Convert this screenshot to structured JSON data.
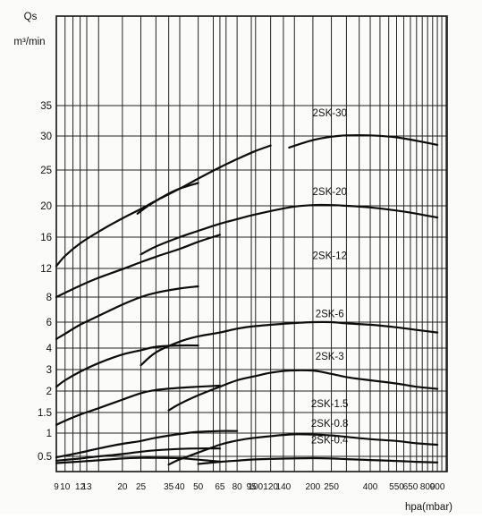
{
  "chart_data": {
    "type": "line",
    "ylabel": "Qs",
    "ylabel_unit": "m³/min",
    "xlabel": "hpa(mbar)",
    "x_scale": "log",
    "y_scale": "nonlinear",
    "grid": true,
    "xlim": [
      9,
      1013
    ],
    "y_ticks": [
      {
        "label": "0.5",
        "value": 0.5
      },
      {
        "label": "1",
        "value": 1
      },
      {
        "label": "1.5",
        "value": 1.5
      },
      {
        "label": "2",
        "value": 2
      },
      {
        "label": "3",
        "value": 3
      },
      {
        "label": "4",
        "value": 4
      },
      {
        "label": "6",
        "value": 6
      },
      {
        "label": "8",
        "value": 8
      },
      {
        "label": "12",
        "value": 12
      },
      {
        "label": "16",
        "value": 16
      },
      {
        "label": "20",
        "value": 20
      },
      {
        "label": "25",
        "value": 25
      },
      {
        "label": "30",
        "value": 30
      },
      {
        "label": "35",
        "value": 35
      }
    ],
    "x_ticks": [
      {
        "label": "9",
        "value": 9
      },
      {
        "label": "10",
        "value": 10
      },
      {
        "label": "12",
        "value": 12
      },
      {
        "label": "13",
        "value": 13
      },
      {
        "label": "20",
        "value": 20
      },
      {
        "label": "25",
        "value": 25
      },
      {
        "label": "35",
        "value": 35
      },
      {
        "label": "40",
        "value": 40
      },
      {
        "label": "50",
        "value": 50
      },
      {
        "label": "65",
        "value": 65
      },
      {
        "label": "80",
        "value": 80
      },
      {
        "label": "95",
        "value": 95
      },
      {
        "label": "100",
        "value": 100
      },
      {
        "label": "120",
        "value": 120
      },
      {
        "label": "140",
        "value": 140
      },
      {
        "label": "200",
        "value": 200
      },
      {
        "label": "250",
        "value": 250
      },
      {
        "label": "400",
        "value": 400
      },
      {
        "label": "550",
        "value": 550
      },
      {
        "label": "650",
        "value": 650
      },
      {
        "label": "800",
        "value": 800
      },
      {
        "label": "900",
        "value": 900
      }
    ],
    "x_grid_only": [
      11,
      15,
      30,
      60,
      70,
      160,
      300,
      350,
      450,
      500,
      600,
      700,
      750,
      850,
      950,
      1000
    ],
    "series": [
      {
        "name": "2SK-30",
        "label_at": [
          245,
          33.2
        ],
        "points": [
          [
            150,
            28.3
          ],
          [
            200,
            29.4
          ],
          [
            250,
            29.9
          ],
          [
            300,
            30.1
          ],
          [
            400,
            30.1
          ],
          [
            550,
            29.8
          ],
          [
            700,
            29.3
          ],
          [
            900,
            28.7
          ]
        ]
      },
      {
        "name": "2SK-30",
        "points": [
          [
            9,
            12.3
          ],
          [
            10,
            13.6
          ],
          [
            12,
            15.2
          ],
          [
            15,
            16.7
          ],
          [
            20,
            18.4
          ],
          [
            25,
            19.6
          ],
          [
            30,
            20.7
          ],
          [
            40,
            22.4
          ],
          [
            50,
            23.8
          ],
          [
            65,
            25.4
          ],
          [
            80,
            26.6
          ],
          [
            100,
            27.8
          ],
          [
            120,
            28.6
          ]
        ]
      },
      {
        "name": "",
        "points": [
          [
            24,
            19
          ],
          [
            28,
            20.2
          ],
          [
            35,
            21.7
          ],
          [
            40,
            22.4
          ],
          [
            50,
            23.2
          ]
        ]
      },
      {
        "name": "2SK-20",
        "label_at": [
          245,
          21.5
        ],
        "points": [
          [
            25,
            13.8
          ],
          [
            30,
            14.8
          ],
          [
            40,
            16
          ],
          [
            50,
            16.8
          ],
          [
            65,
            17.7
          ],
          [
            80,
            18.3
          ],
          [
            100,
            18.9
          ],
          [
            150,
            19.8
          ],
          [
            200,
            20.1
          ],
          [
            250,
            20.1
          ],
          [
            300,
            20
          ],
          [
            400,
            19.8
          ],
          [
            550,
            19.4
          ],
          [
            700,
            19
          ],
          [
            900,
            18.5
          ]
        ]
      },
      {
        "name": "",
        "points": [
          [
            9,
            8
          ],
          [
            10,
            8.6
          ],
          [
            12,
            9.6
          ],
          [
            15,
            10.7
          ],
          [
            20,
            11.9
          ],
          [
            25,
            12.8
          ],
          [
            30,
            13.5
          ],
          [
            40,
            14.5
          ],
          [
            50,
            15.4
          ],
          [
            65,
            16.3
          ]
        ]
      },
      {
        "name": "2SK-12",
        "label_at": [
          245,
          13.2
        ],
        "points": [
          [
            9,
            4.7
          ],
          [
            10,
            5.1
          ],
          [
            12,
            5.8
          ],
          [
            15,
            6.5
          ],
          [
            20,
            7.4
          ],
          [
            25,
            8
          ],
          [
            30,
            8.6
          ],
          [
            40,
            9.2
          ],
          [
            50,
            9.5
          ]
        ]
      },
      {
        "name": "",
        "points": [
          [
            25,
            3.2
          ],
          [
            30,
            3.8
          ],
          [
            40,
            4.5
          ],
          [
            50,
            4.9
          ],
          [
            65,
            5.2
          ],
          [
            80,
            5.5
          ],
          [
            100,
            5.7
          ],
          [
            150,
            5.9
          ],
          [
            200,
            6
          ],
          [
            250,
            6
          ],
          [
            300,
            5.9
          ],
          [
            400,
            5.8
          ],
          [
            550,
            5.6
          ],
          [
            700,
            5.4
          ],
          [
            900,
            5.2
          ]
        ]
      },
      {
        "name": "2SK-6",
        "label_at": [
          245,
          6.4
        ],
        "points": [
          [
            9,
            2.2
          ],
          [
            10,
            2.5
          ],
          [
            12,
            2.9
          ],
          [
            15,
            3.3
          ],
          [
            20,
            3.7
          ],
          [
            25,
            3.9
          ],
          [
            30,
            4.1
          ],
          [
            40,
            4.2
          ],
          [
            50,
            4.2
          ]
        ]
      },
      {
        "name": "2SK-3",
        "label_at": [
          245,
          3.45
        ],
        "points": [
          [
            35,
            1.55
          ],
          [
            40,
            1.7
          ],
          [
            50,
            1.9
          ],
          [
            65,
            2.2
          ],
          [
            80,
            2.5
          ],
          [
            100,
            2.7
          ],
          [
            120,
            2.85
          ],
          [
            150,
            2.95
          ],
          [
            200,
            2.95
          ],
          [
            250,
            2.8
          ],
          [
            300,
            2.65
          ],
          [
            400,
            2.5
          ],
          [
            550,
            2.35
          ],
          [
            700,
            2.2
          ],
          [
            900,
            2.1
          ]
        ]
      },
      {
        "name": "2SK-1.5",
        "label_at": [
          245,
          1.62
        ],
        "points": [
          [
            9,
            1.2
          ],
          [
            10,
            1.3
          ],
          [
            12,
            1.45
          ],
          [
            15,
            1.6
          ],
          [
            20,
            1.8
          ],
          [
            25,
            1.95
          ],
          [
            30,
            2.05
          ],
          [
            40,
            2.15
          ],
          [
            50,
            2.2
          ],
          [
            65,
            2.25
          ]
        ]
      },
      {
        "name": "",
        "points": [
          [
            9,
            0.47
          ],
          [
            12,
            0.58
          ],
          [
            15,
            0.67
          ],
          [
            20,
            0.77
          ],
          [
            25,
            0.83
          ],
          [
            30,
            0.9
          ],
          [
            40,
            0.98
          ],
          [
            50,
            1.03
          ],
          [
            65,
            1.05
          ],
          [
            80,
            1.05
          ]
        ]
      },
      {
        "name": "2SK-0.8",
        "label_at": [
          245,
          1.15
        ],
        "points": [
          [
            35,
            0.23
          ],
          [
            40,
            0.4
          ],
          [
            50,
            0.58
          ],
          [
            65,
            0.75
          ],
          [
            80,
            0.84
          ],
          [
            100,
            0.9
          ],
          [
            150,
            0.97
          ],
          [
            200,
            0.97
          ],
          [
            250,
            0.95
          ],
          [
            300,
            0.92
          ],
          [
            400,
            0.87
          ],
          [
            550,
            0.83
          ],
          [
            700,
            0.78
          ],
          [
            900,
            0.75
          ]
        ]
      },
      {
        "name": "",
        "points": [
          [
            9,
            0.36
          ],
          [
            12,
            0.43
          ],
          [
            15,
            0.5
          ],
          [
            20,
            0.55
          ],
          [
            25,
            0.6
          ],
          [
            30,
            0.63
          ],
          [
            40,
            0.66
          ],
          [
            50,
            0.67
          ],
          [
            65,
            0.67
          ]
        ]
      },
      {
        "name": "2SK-0.4",
        "label_at": [
          245,
          0.78
        ],
        "points": [
          [
            9,
            0.28
          ],
          [
            12,
            0.33
          ],
          [
            15,
            0.37
          ],
          [
            20,
            0.43
          ],
          [
            25,
            0.45
          ],
          [
            30,
            0.45
          ],
          [
            40,
            0.44
          ],
          [
            50,
            0.39
          ],
          [
            65,
            0.33
          ]
        ]
      },
      {
        "name": "",
        "points": [
          [
            50,
            0.25
          ],
          [
            65,
            0.32
          ],
          [
            80,
            0.36
          ],
          [
            100,
            0.4
          ],
          [
            150,
            0.43
          ],
          [
            200,
            0.44
          ],
          [
            250,
            0.43
          ],
          [
            300,
            0.41
          ],
          [
            400,
            0.38
          ],
          [
            550,
            0.35
          ],
          [
            700,
            0.32
          ],
          [
            900,
            0.3
          ]
        ]
      }
    ]
  }
}
